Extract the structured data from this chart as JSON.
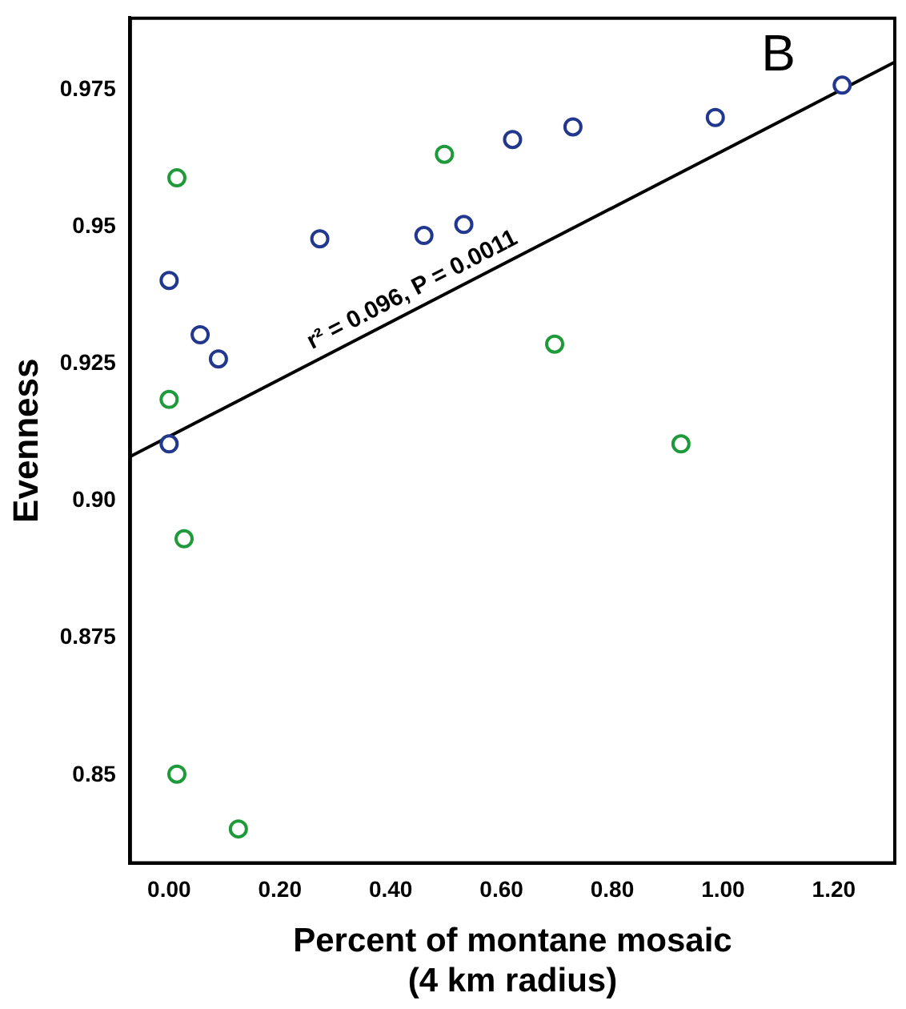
{
  "chart_data": {
    "type": "scatter",
    "xlabel": "Percent of montane mosaic\n(4 km radius)",
    "ylabel": "Evenness",
    "xlim": [
      -0.07,
      1.31
    ],
    "ylim": [
      0.834,
      0.988
    ],
    "xticks": [
      {
        "value": 0,
        "label": "0.00"
      },
      {
        "value": 0.2,
        "label": "0.20"
      },
      {
        "value": 0.4,
        "label": "0.40"
      },
      {
        "value": 0.6,
        "label": "0.60"
      },
      {
        "value": 0.8,
        "label": "0.80"
      },
      {
        "value": 1,
        "label": "1.00"
      },
      {
        "value": 1.2,
        "label": "1.20"
      }
    ],
    "yticks": [
      0.85,
      0.875,
      {
        "value": 0.9,
        "label": "0.90"
      },
      0.925,
      0.95,
      0.975
    ],
    "grid": false,
    "legend": false,
    "marker": "circle",
    "series": [
      {
        "color": "#22388f",
        "x": [
          0.0,
          0.056,
          0.089,
          0.0,
          0.272,
          0.46,
          0.532,
          0.62,
          0.729,
          0.986,
          1.215
        ],
        "values": [
          0.9402,
          0.9303,
          0.9259,
          0.9104,
          0.9478,
          0.9484,
          0.9504,
          0.9659,
          0.9682,
          0.9699,
          0.9758
        ]
      },
      {
        "color": "#1e9a3a",
        "x": [
          0.014,
          0.0,
          0.497,
          0.696,
          0.924,
          0.027,
          0.014,
          0.125
        ],
        "values": [
          0.9589,
          0.9185,
          0.9632,
          0.9286,
          0.9104,
          0.8931,
          0.8502,
          0.8402
        ]
      },
      {
        "type": "line",
        "color": "#000000",
        "marker": "none",
        "line_style": "solid",
        "x": [
          -0.07,
          1.31
        ],
        "values": [
          0.9081,
          0.98
        ]
      }
    ],
    "annotations": [
      "r² = 0.096, P = 0.0011",
      "B"
    ]
  }
}
